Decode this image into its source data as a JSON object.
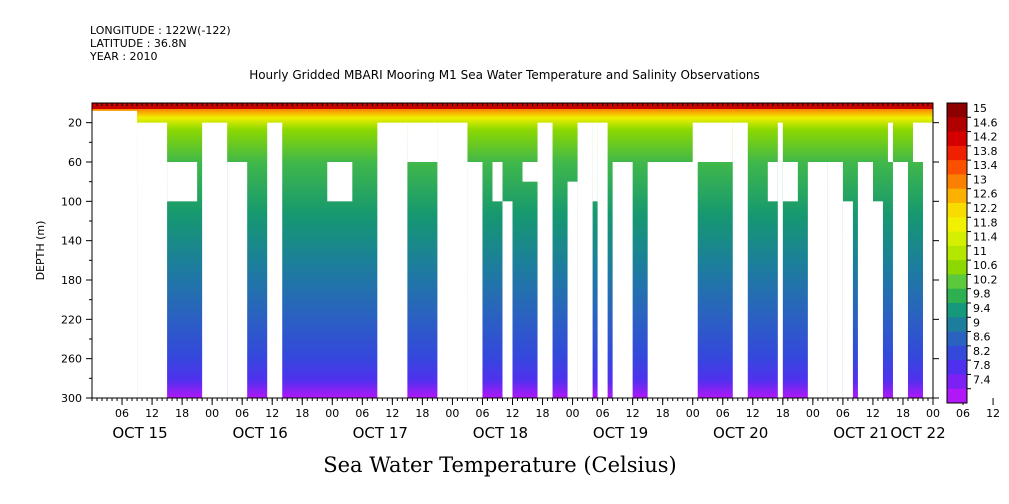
{
  "header": {
    "longitude": "LONGITUDE : 122W(-122)",
    "latitude": "LATITUDE : 36.8N",
    "year": "YEAR : 2010",
    "title": "Hourly Gridded MBARI Mooring M1 Sea Water Temperature and Salinity Observations"
  },
  "footer": {
    "variable_title": "Sea Water Temperature (Celsius)"
  },
  "chart_data": {
    "type": "heatmap",
    "title": "Hourly Gridded MBARI Mooring M1 Sea Water Temperature and Salinity Observations",
    "subtitle": "Sea Water Temperature (Celsius)",
    "xlabel": "",
    "ylabel": "DEPTH (m)",
    "x_range_hours": [
      0,
      168
    ],
    "y_range": [
      0,
      300
    ],
    "y_reversed": true,
    "y_ticks": [
      20,
      60,
      100,
      140,
      180,
      220,
      260,
      300
    ],
    "x_hour_ticks": [
      "06",
      "12",
      "18",
      "00",
      "06",
      "12",
      "18",
      "00",
      "06",
      "12",
      "18",
      "00",
      "06",
      "12",
      "18",
      "00",
      "06",
      "12",
      "18",
      "00",
      "06",
      "12",
      "18",
      "00",
      "06",
      "12",
      "18",
      "00",
      "06",
      "12",
      "18",
      "00"
    ],
    "x_day_labels": [
      "OCT 15",
      "OCT 16",
      "OCT 17",
      "OCT 18",
      "OCT 19",
      "OCT 20",
      "OCT 21",
      "OCT 22"
    ],
    "colorbar": {
      "levels": [
        "15",
        "14.6",
        "14.2",
        "13.8",
        "13.4",
        "13",
        "12.6",
        "12.2",
        "11.8",
        "11.4",
        "11",
        "10.6",
        "10.2",
        "9.8",
        "9.4",
        "9",
        "8.6",
        "8.2",
        "7.8",
        "7.4"
      ],
      "colors": [
        "#8c0000",
        "#b00000",
        "#d40000",
        "#ee2000",
        "#fa5000",
        "#fc8000",
        "#fcb000",
        "#f8dc00",
        "#f0f000",
        "#d4f000",
        "#b4e600",
        "#8cd800",
        "#5cc83c",
        "#2eb050",
        "#16987a",
        "#1c7e9c",
        "#2a62c0",
        "#3448dc",
        "#5030ee",
        "#7c20f4",
        "#b018f8"
      ]
    },
    "blank_regions": [
      {
        "x": [
          0,
          9
        ],
        "depth": [
          8,
          300
        ]
      },
      {
        "x": [
          9,
          15
        ],
        "depth": [
          20,
          300
        ]
      },
      {
        "x": [
          15,
          21
        ],
        "depth": [
          60,
          100
        ]
      },
      {
        "x": [
          22,
          27
        ],
        "depth": [
          20,
          300
        ]
      },
      {
        "x": [
          27,
          31
        ],
        "depth": [
          60,
          300
        ]
      },
      {
        "x": [
          35,
          38
        ],
        "depth": [
          20,
          300
        ]
      },
      {
        "x": [
          47,
          52
        ],
        "depth": [
          60,
          100
        ]
      },
      {
        "x": [
          57,
          63
        ],
        "depth": [
          20,
          300
        ]
      },
      {
        "x": [
          63,
          69
        ],
        "depth": [
          20,
          60
        ]
      },
      {
        "x": [
          69,
          75
        ],
        "depth": [
          20,
          300
        ]
      },
      {
        "x": [
          75,
          78
        ],
        "depth": [
          60,
          300
        ]
      },
      {
        "x": [
          80,
          82
        ],
        "depth": [
          60,
          100
        ]
      },
      {
        "x": [
          82,
          84
        ],
        "depth": [
          100,
          300
        ]
      },
      {
        "x": [
          86,
          89
        ],
        "depth": [
          60,
          80
        ]
      },
      {
        "x": [
          89,
          92
        ],
        "depth": [
          20,
          300
        ]
      },
      {
        "x": [
          95,
          97
        ],
        "depth": [
          80,
          300
        ]
      },
      {
        "x": [
          97,
          100
        ],
        "depth": [
          20,
          300
        ]
      },
      {
        "x": [
          100,
          101
        ],
        "depth": [
          20,
          100
        ]
      },
      {
        "x": [
          101,
          103
        ],
        "depth": [
          20,
          300
        ]
      },
      {
        "x": [
          104,
          108
        ],
        "depth": [
          60,
          300
        ]
      },
      {
        "x": [
          111,
          121
        ],
        "depth": [
          60,
          300
        ]
      },
      {
        "x": [
          120,
          128
        ],
        "depth": [
          20,
          60
        ]
      },
      {
        "x": [
          128,
          131
        ],
        "depth": [
          20,
          300
        ]
      },
      {
        "x": [
          135,
          137
        ],
        "depth": [
          60,
          100
        ]
      },
      {
        "x": [
          137,
          138
        ],
        "depth": [
          20,
          300
        ]
      },
      {
        "x": [
          138,
          141
        ],
        "depth": [
          60,
          100
        ]
      },
      {
        "x": [
          143,
          147
        ],
        "depth": [
          60,
          300
        ]
      },
      {
        "x": [
          147,
          150
        ],
        "depth": [
          60,
          300
        ]
      },
      {
        "x": [
          150,
          152
        ],
        "depth": [
          100,
          300
        ]
      },
      {
        "x": [
          154,
          156
        ],
        "depth": [
          60,
          300
        ]
      },
      {
        "x": [
          156,
          158
        ],
        "depth": [
          100,
          300
        ]
      },
      {
        "x": [
          159,
          160
        ],
        "depth": [
          20,
          60
        ]
      },
      {
        "x": [
          160,
          163
        ],
        "depth": [
          60,
          300
        ]
      },
      {
        "x": [
          164,
          166
        ],
        "depth": [
          20,
          60
        ]
      },
      {
        "x": [
          166,
          168
        ],
        "depth": [
          20,
          300
        ]
      },
      {
        "x": [
          153,
          156
        ],
        "depth": [
          60,
          300
        ]
      },
      {
        "x": [
          172,
          173
        ],
        "depth": [
          20,
          300
        ]
      },
      {
        "x": [
          174,
          175
        ],
        "depth": [
          20,
          60
        ]
      },
      {
        "x": [
          175,
          178
        ],
        "depth": [
          100,
          300
        ]
      },
      {
        "x": [
          179,
          181
        ],
        "depth": [
          20,
          300
        ]
      },
      {
        "x": [
          183,
          188
        ],
        "depth": [
          20,
          300
        ]
      }
    ]
  }
}
